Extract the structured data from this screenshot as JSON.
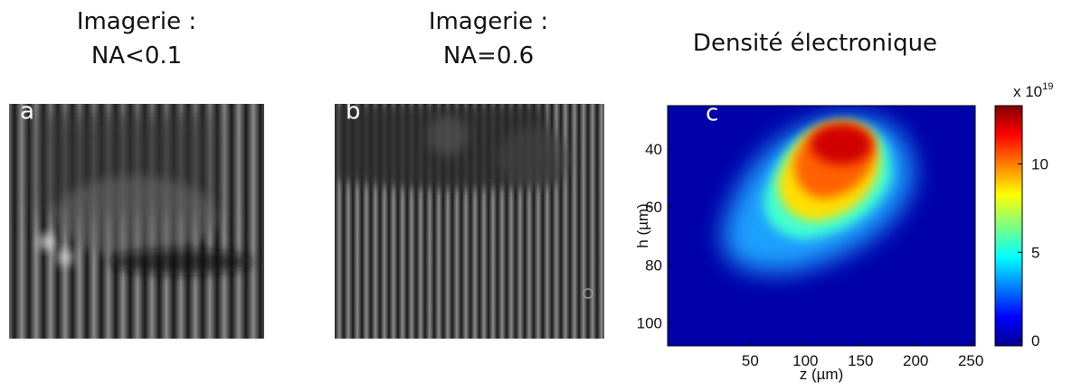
{
  "panels": [
    {
      "label": "a",
      "title": [
        "Imagerie :",
        "NA<0.1"
      ]
    },
    {
      "label": "b",
      "title": [
        "Imagerie :",
        "NA=0.6"
      ]
    },
    {
      "label": "c",
      "title": "Densité électronique",
      "x_label": "z (µm)",
      "y_label": "h (µm)",
      "xlim": [
        -25,
        254
      ],
      "xticks": [
        50,
        100,
        150,
        200,
        250
      ],
      "ylim": [
        108,
        25
      ],
      "yticks": [
        40,
        60,
        80,
        100
      ],
      "colorbar": {
        "lim": [
          -0.3,
          13.3
        ],
        "ticks": [
          0,
          5,
          10
        ],
        "scale": {
          "base": "x 10",
          "exponent": "19"
        }
      }
    }
  ]
}
